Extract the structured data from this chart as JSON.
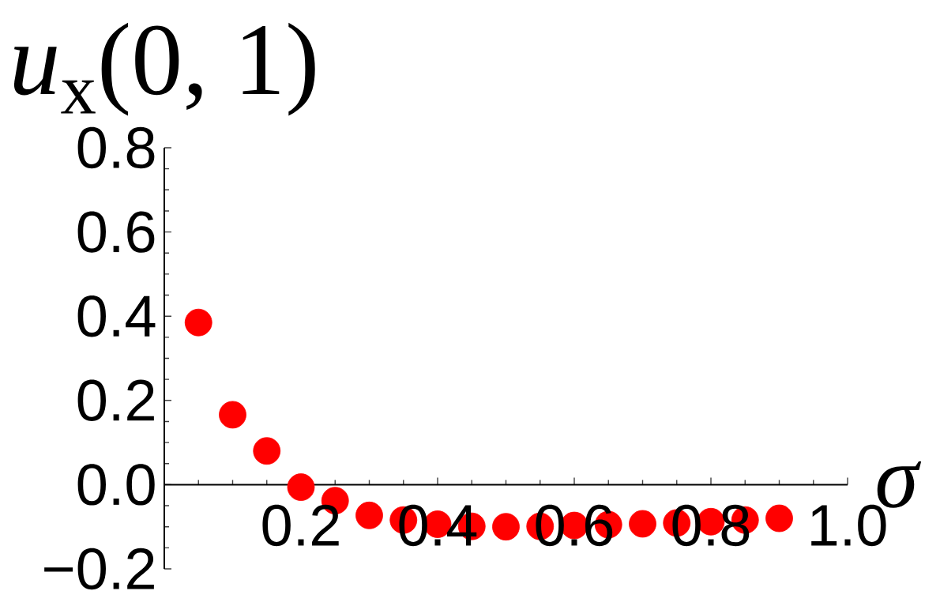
{
  "chart_data": {
    "type": "scatter",
    "xlabel": "σ",
    "ylabel": "*u*$_{x}$(0, 1)",
    "x": [
      0.05,
      0.1,
      0.15,
      0.2,
      0.25,
      0.3,
      0.35,
      0.4,
      0.45,
      0.5,
      0.55,
      0.6,
      0.65,
      0.7,
      0.75,
      0.8,
      0.85,
      0.9
    ],
    "values": [
      0.385,
      0.166,
      0.08,
      -0.006,
      -0.038,
      -0.073,
      -0.084,
      -0.094,
      -0.099,
      -0.1,
      -0.099,
      -0.097,
      -0.095,
      -0.093,
      -0.091,
      -0.088,
      -0.084,
      -0.08
    ],
    "color": "#ff0000",
    "marker": "circle",
    "xlim": [
      0,
      1
    ],
    "ylim": [
      -0.2,
      0.8
    ],
    "xticks": [
      {
        "value": 0.05,
        "label": null
      },
      {
        "value": 0.1,
        "label": null
      },
      {
        "value": 0.15,
        "label": null
      },
      {
        "value": 0.2,
        "label": "0.2"
      },
      {
        "value": 0.25,
        "label": null
      },
      {
        "value": 0.3,
        "label": null
      },
      {
        "value": 0.35,
        "label": null
      },
      {
        "value": 0.4,
        "label": "0.4"
      },
      {
        "value": 0.45,
        "label": null
      },
      {
        "value": 0.5,
        "label": null
      },
      {
        "value": 0.55,
        "label": null
      },
      {
        "value": 0.6,
        "label": "0.6"
      },
      {
        "value": 0.65,
        "label": null
      },
      {
        "value": 0.7,
        "label": null
      },
      {
        "value": 0.75,
        "label": null
      },
      {
        "value": 0.8,
        "label": "0.8"
      },
      {
        "value": 0.85,
        "label": null
      },
      {
        "value": 0.9,
        "label": null
      },
      {
        "value": 0.95,
        "label": null
      },
      {
        "value": 1.0,
        "label": "1.0"
      }
    ],
    "yticks": [
      {
        "value": -0.2,
        "label": "−0.2"
      },
      {
        "value": -0.15,
        "label": null
      },
      {
        "value": -0.1,
        "label": null
      },
      {
        "value": -0.05,
        "label": null
      },
      {
        "value": 0.0,
        "label": "0.0"
      },
      {
        "value": 0.05,
        "label": null
      },
      {
        "value": 0.1,
        "label": null
      },
      {
        "value": 0.15,
        "label": null
      },
      {
        "value": 0.2,
        "label": "0.2"
      },
      {
        "value": 0.25,
        "label": null
      },
      {
        "value": 0.3,
        "label": null
      },
      {
        "value": 0.35,
        "label": null
      },
      {
        "value": 0.4,
        "label": "0.4"
      },
      {
        "value": 0.45,
        "label": null
      },
      {
        "value": 0.5,
        "label": null
      },
      {
        "value": 0.55,
        "label": null
      },
      {
        "value": 0.6,
        "label": "0.6"
      },
      {
        "value": 0.65,
        "label": null
      },
      {
        "value": 0.7,
        "label": null
      },
      {
        "value": 0.75,
        "label": null
      },
      {
        "value": 0.8,
        "label": "0.8"
      }
    ]
  }
}
